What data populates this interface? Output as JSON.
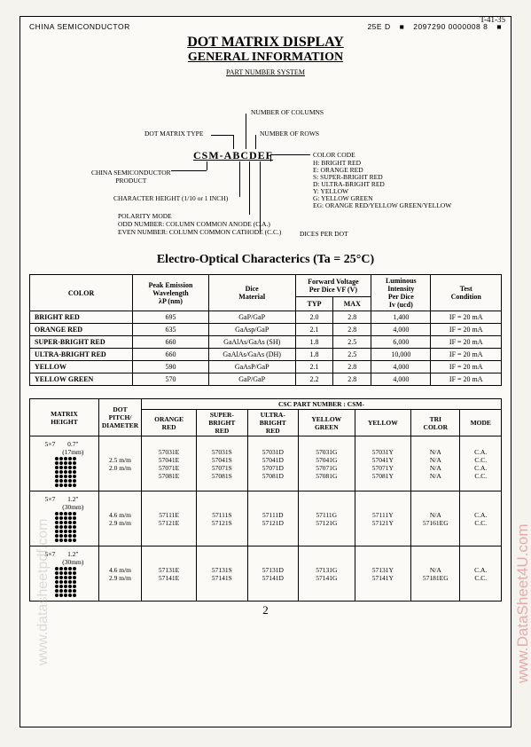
{
  "header": {
    "company": "CHINA SEMICONDUCTOR",
    "code1": "25E D",
    "code2": "2097290 0000008 8",
    "tcode": "T-41-35"
  },
  "titles": {
    "h1": "DOT MATRIX DISPLAY",
    "h2": "GENERAL INFORMATION",
    "pns": "PART NUMBER SYSTEM"
  },
  "diagram": {
    "code": "CSM-ABCDEF",
    "dot_matrix_type": "DOT MATRIX TYPE",
    "num_cols": "NUMBER OF COLUMNS",
    "num_rows": "NUMBER OF ROWS",
    "china_prod": "CHINA SEMICONDUCTOR\nPRODUCT",
    "char_height": "CHARACTER HEIGHT (1/10 or 1 INCH)",
    "polarity": "POLARITY MODE",
    "polarity_odd": "ODD NUMBER: COLUMN COMMON ANODE (C.A.)",
    "polarity_even": "EVEN NUMBER: COLUMN COMMON CATHODE (C.C.)",
    "dices": "DICES PER DOT",
    "color_code": "COLOR CODE",
    "cc": {
      "h": "H: BRIGHT RED",
      "e": "E: ORANGE RED",
      "s": "S: SUPER-BRIGHT RED",
      "d": "D: ULTRA-BRIGHT RED",
      "y": "Y: YELLOW",
      "g": "G: YELLOW GREEN",
      "eg": "EG: ORANGE RED/YELLOW GREEN/YELLOW"
    }
  },
  "eo": {
    "title": "Electro-Optical Characterics (Ta = 25°C)",
    "headers": {
      "color": "COLOR",
      "peak": "Peak Emission\nWavelength\nλP (nm)",
      "dice": "Dice\nMaterial",
      "fv": "Forward Voltage\nPer Dice VF (V)",
      "typ": "TYP",
      "max": "MAX",
      "lum": "Luminous\nIntensity\nPer Dice\nIv (ucd)",
      "test": "Test\nCondition"
    },
    "rows": [
      {
        "color": "BRIGHT RED",
        "peak": "695",
        "dice": "GaP/GaP",
        "typ": "2.0",
        "max": "2.8",
        "lum": "1,400",
        "test": "IF = 20 mA"
      },
      {
        "color": "ORANGE RED",
        "peak": "635",
        "dice": "GaAsp/GaP",
        "typ": "2.1",
        "max": "2.8",
        "lum": "4,000",
        "test": "IF = 20 mA"
      },
      {
        "color": "SUPER-BRIGHT RED",
        "peak": "660",
        "dice": "GaAlAs/GaAs (SH)",
        "typ": "1.8",
        "max": "2.5",
        "lum": "6,000",
        "test": "IF = 20 mA"
      },
      {
        "color": "ULTRA-BRIGHT RED",
        "peak": "660",
        "dice": "GaAlAs/GaAs (DH)",
        "typ": "1.8",
        "max": "2.5",
        "lum": "10,000",
        "test": "IF = 20 mA"
      },
      {
        "color": "YELLOW",
        "peak": "590",
        "dice": "GaAsP/GaP",
        "typ": "2.1",
        "max": "2.8",
        "lum": "4,000",
        "test": "IF = 20 mA"
      },
      {
        "color": "YELLOW GREEN",
        "peak": "570",
        "dice": "GaP/GaP",
        "typ": "2.2",
        "max": "2.8",
        "lum": "4,000",
        "test": "IF = 20 mA"
      }
    ]
  },
  "pn": {
    "headers": {
      "matrix_height": "MATRIX\nHEIGHT",
      "dot_pitch": "DOT\nPITCH/\nDIAMETER",
      "csc": "CSC PART NUMBER : CSM-",
      "orange": "ORANGE\nRED",
      "super": "SUPER-\nBRIGHT\nRED",
      "ultra": "ULTRA-\nBRIGHT\nRED",
      "ygreen": "YELLOW\nGREEN",
      "yellow": "YELLOW",
      "tri": "TRI\nCOLOR",
      "mode": "MODE"
    },
    "groups": [
      {
        "matrix": "5×7",
        "size": "0.7\"\n(17mm)",
        "pitch": [
          "2.5 m/m",
          "2.0 m/m"
        ],
        "orange": [
          "57031E",
          "57041E",
          "57071E",
          "57081E"
        ],
        "super": [
          "57031S",
          "57041S",
          "57071S",
          "57081S"
        ],
        "ultra": [
          "57031D",
          "57041D",
          "57071D",
          "57081D"
        ],
        "ygreen": [
          "57031G",
          "57041G",
          "57071G",
          "57081G"
        ],
        "yellow": [
          "57031Y",
          "57041Y",
          "57071Y",
          "57081Y"
        ],
        "tri": [
          "N/A",
          "N/A",
          "N/A",
          "N/A"
        ],
        "mode": [
          "C.A.",
          "C.C.",
          "C.A.",
          "C.C."
        ]
      },
      {
        "matrix": "5×7",
        "size": "1.2\"\n(30mm)",
        "pitch": [
          "4.6 m/m",
          "2.9 m/m"
        ],
        "orange": [
          "57111E",
          "57121E"
        ],
        "super": [
          "57111S",
          "57121S"
        ],
        "ultra": [
          "57111D",
          "57121D"
        ],
        "ygreen": [
          "57111G",
          "57121G"
        ],
        "yellow": [
          "57111Y",
          "57121Y"
        ],
        "tri": [
          "N/A",
          "57161EG"
        ],
        "mode": [
          "C.A.",
          "C.C."
        ]
      },
      {
        "matrix": "5×7",
        "size": "1.2\"\n(30mm)",
        "pitch": [
          "4.6 m/m",
          "2.9 m/m"
        ],
        "orange": [
          "57131E",
          "57141E"
        ],
        "super": [
          "57131S",
          "57141S"
        ],
        "ultra": [
          "57131D",
          "57141D"
        ],
        "ygreen": [
          "57131G",
          "57141G"
        ],
        "yellow": [
          "57131Y",
          "57141Y"
        ],
        "tri": [
          "N/A",
          "57181EG"
        ],
        "mode": [
          "C.A.",
          "C.C."
        ]
      }
    ]
  },
  "watermark": {
    "left": "www.datasheetpdf.com",
    "right": "www.DataSheet4U.com"
  },
  "pagenum": "2"
}
